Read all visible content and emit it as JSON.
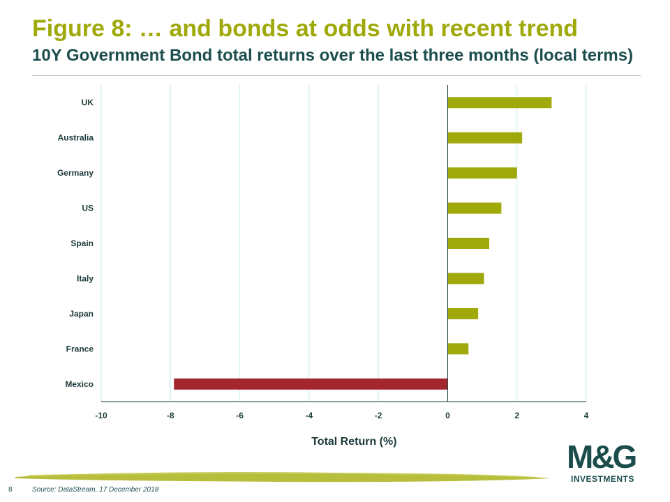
{
  "header": {
    "title": "Figure 8: … and bonds at odds with recent trend",
    "subtitle": "10Y Government Bond total returns over the last three months (local terms)"
  },
  "footer": {
    "page_number": "8",
    "source": "Source: DataStream, 17 December 2018"
  },
  "logo": {
    "mark": "M&G",
    "sub": "INVESTMENTS"
  },
  "colors": {
    "positive": "#a0a90a",
    "negative": "#a3262e",
    "title": "#a0a90a",
    "subtitle": "#1c4d4d",
    "gridline": "#c8ecef",
    "axis": "#1c3a3a"
  },
  "chart_data": {
    "type": "bar",
    "orientation": "horizontal",
    "categories": [
      "UK",
      "Australia",
      "Germany",
      "US",
      "Spain",
      "Italy",
      "Japan",
      "France",
      "Mexico"
    ],
    "values": [
      3.0,
      2.15,
      2.0,
      1.55,
      1.2,
      1.05,
      0.88,
      0.6,
      -7.9
    ],
    "xlabel": "Total Return (%)",
    "ylabel": "",
    "xlim": [
      -10,
      4
    ],
    "xticks": [
      "-10",
      "-8",
      "-6",
      "-4",
      "-2",
      "0",
      "2",
      "4"
    ],
    "grid": true,
    "legend": "none"
  }
}
